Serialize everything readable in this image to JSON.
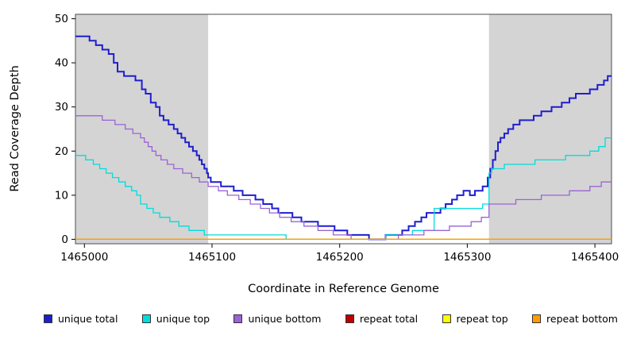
{
  "chart_data": {
    "type": "line",
    "step": true,
    "title": "",
    "xlabel": "Coordinate in Reference Genome",
    "ylabel": "Read Coverage Depth",
    "xlim": [
      1464993,
      1465413
    ],
    "ylim": [
      -1,
      51
    ],
    "xticks": [
      1465000,
      1465100,
      1465200,
      1465300,
      1465400
    ],
    "yticks": [
      0,
      10,
      20,
      30,
      40,
      50
    ],
    "grid": false,
    "legend_position": "bottom",
    "shaded_regions": [
      {
        "x0": 1464993,
        "x1": 1465097,
        "color": "#d4d4d4"
      },
      {
        "x0": 1465317,
        "x1": 1465413,
        "color": "#d4d4d4"
      }
    ],
    "series": [
      {
        "name": "unique total",
        "color": "#1e1ecf",
        "width": 2,
        "points": [
          [
            1464993,
            46
          ],
          [
            1465004,
            45
          ],
          [
            1465009,
            44
          ],
          [
            1465014,
            43
          ],
          [
            1465019,
            42
          ],
          [
            1465023,
            40
          ],
          [
            1465026,
            38
          ],
          [
            1465031,
            37
          ],
          [
            1465040,
            36
          ],
          [
            1465045,
            34
          ],
          [
            1465048,
            33
          ],
          [
            1465052,
            31
          ],
          [
            1465056,
            30
          ],
          [
            1465059,
            28
          ],
          [
            1465062,
            27
          ],
          [
            1465066,
            26
          ],
          [
            1465070,
            25
          ],
          [
            1465073,
            24
          ],
          [
            1465076,
            23
          ],
          [
            1465079,
            22
          ],
          [
            1465082,
            21
          ],
          [
            1465085,
            20
          ],
          [
            1465088,
            19
          ],
          [
            1465090,
            18
          ],
          [
            1465092,
            17
          ],
          [
            1465094,
            16
          ],
          [
            1465096,
            15
          ],
          [
            1465097,
            14
          ],
          [
            1465099,
            13
          ],
          [
            1465107,
            12
          ],
          [
            1465117,
            11
          ],
          [
            1465124,
            10
          ],
          [
            1465134,
            9
          ],
          [
            1465140,
            8
          ],
          [
            1465147,
            7
          ],
          [
            1465152,
            6
          ],
          [
            1465163,
            5
          ],
          [
            1465170,
            4
          ],
          [
            1465183,
            3
          ],
          [
            1465196,
            2
          ],
          [
            1465206,
            1
          ],
          [
            1465223,
            0
          ],
          [
            1465236,
            1
          ],
          [
            1465249,
            2
          ],
          [
            1465254,
            3
          ],
          [
            1465259,
            4
          ],
          [
            1465264,
            5
          ],
          [
            1465268,
            6
          ],
          [
            1465279,
            7
          ],
          [
            1465283,
            8
          ],
          [
            1465288,
            9
          ],
          [
            1465292,
            10
          ],
          [
            1465297,
            11
          ],
          [
            1465302,
            10
          ],
          [
            1465306,
            11
          ],
          [
            1465312,
            12
          ],
          [
            1465316,
            14
          ],
          [
            1465318,
            16
          ],
          [
            1465320,
            18
          ],
          [
            1465322,
            20
          ],
          [
            1465324,
            22
          ],
          [
            1465326,
            23
          ],
          [
            1465329,
            24
          ],
          [
            1465332,
            25
          ],
          [
            1465336,
            26
          ],
          [
            1465341,
            27
          ],
          [
            1465352,
            28
          ],
          [
            1465358,
            29
          ],
          [
            1465366,
            30
          ],
          [
            1465374,
            31
          ],
          [
            1465380,
            32
          ],
          [
            1465385,
            33
          ],
          [
            1465396,
            34
          ],
          [
            1465402,
            35
          ],
          [
            1465407,
            36
          ],
          [
            1465410,
            37
          ]
        ]
      },
      {
        "name": "unique top",
        "color": "#00dcdc",
        "width": 1.3,
        "points": [
          [
            1464993,
            19
          ],
          [
            1465001,
            18
          ],
          [
            1465007,
            17
          ],
          [
            1465012,
            16
          ],
          [
            1465017,
            15
          ],
          [
            1465022,
            14
          ],
          [
            1465027,
            13
          ],
          [
            1465032,
            12
          ],
          [
            1465037,
            11
          ],
          [
            1465041,
            10
          ],
          [
            1465044,
            8
          ],
          [
            1465049,
            7
          ],
          [
            1465054,
            6
          ],
          [
            1465059,
            5
          ],
          [
            1465067,
            4
          ],
          [
            1465074,
            3
          ],
          [
            1465082,
            2
          ],
          [
            1465094,
            1
          ],
          [
            1465158,
            0
          ],
          [
            1465236,
            1
          ],
          [
            1465257,
            2
          ],
          [
            1465274,
            7
          ],
          [
            1465312,
            8
          ],
          [
            1465317,
            15
          ],
          [
            1465319,
            16
          ],
          [
            1465329,
            17
          ],
          [
            1465353,
            18
          ],
          [
            1465377,
            19
          ],
          [
            1465396,
            20
          ],
          [
            1465403,
            21
          ],
          [
            1465408,
            23
          ]
        ]
      },
      {
        "name": "unique bottom",
        "color": "#9a63d6",
        "width": 1.3,
        "points": [
          [
            1464993,
            28
          ],
          [
            1465014,
            27
          ],
          [
            1465024,
            26
          ],
          [
            1465032,
            25
          ],
          [
            1465038,
            24
          ],
          [
            1465044,
            23
          ],
          [
            1465047,
            22
          ],
          [
            1465050,
            21
          ],
          [
            1465053,
            20
          ],
          [
            1465056,
            19
          ],
          [
            1465060,
            18
          ],
          [
            1465065,
            17
          ],
          [
            1465070,
            16
          ],
          [
            1465077,
            15
          ],
          [
            1465084,
            14
          ],
          [
            1465090,
            13
          ],
          [
            1465097,
            12
          ],
          [
            1465105,
            11
          ],
          [
            1465112,
            10
          ],
          [
            1465121,
            9
          ],
          [
            1465130,
            8
          ],
          [
            1465138,
            7
          ],
          [
            1465145,
            6
          ],
          [
            1465153,
            5
          ],
          [
            1465162,
            4
          ],
          [
            1465172,
            3
          ],
          [
            1465183,
            2
          ],
          [
            1465195,
            1
          ],
          [
            1465209,
            0
          ],
          [
            1465246,
            1
          ],
          [
            1465266,
            2
          ],
          [
            1465286,
            3
          ],
          [
            1465303,
            4
          ],
          [
            1465311,
            5
          ],
          [
            1465317,
            8
          ],
          [
            1465338,
            9
          ],
          [
            1465358,
            10
          ],
          [
            1465380,
            11
          ],
          [
            1465396,
            12
          ],
          [
            1465405,
            13
          ]
        ]
      },
      {
        "name": "repeat total",
        "color": "#bb0000",
        "width": 1.3,
        "points": [
          [
            1464993,
            0
          ],
          [
            1465413,
            0
          ]
        ]
      },
      {
        "name": "repeat top",
        "color": "#ffff00",
        "width": 1.3,
        "points": [
          [
            1464993,
            0
          ],
          [
            1465413,
            0
          ]
        ]
      },
      {
        "name": "repeat bottom",
        "color": "#ff9d00",
        "width": 1.3,
        "points": [
          [
            1464993,
            0
          ],
          [
            1465413,
            0
          ]
        ]
      }
    ]
  }
}
